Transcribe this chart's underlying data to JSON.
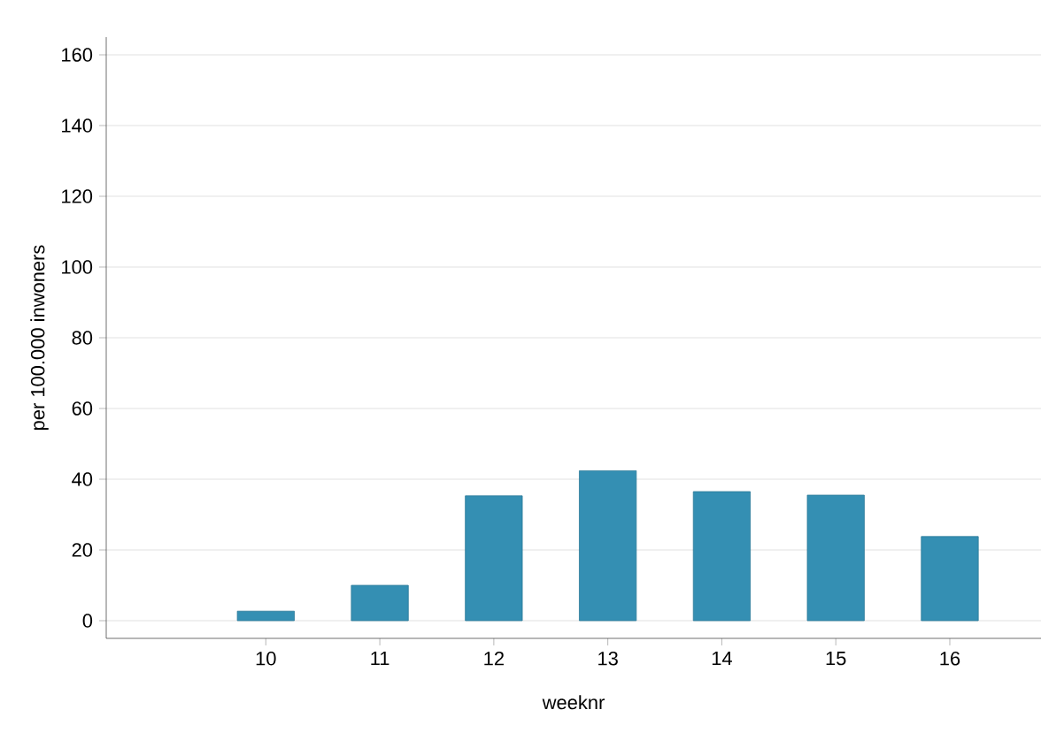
{
  "chart_data": {
    "type": "bar",
    "xlabel": "weeknr",
    "ylabel": "per 100.000 inwoners",
    "x": [
      10,
      11,
      12,
      13,
      14,
      15,
      16
    ],
    "values": [
      2.7,
      10,
      35.3,
      42.4,
      36.5,
      35.5,
      23.8
    ],
    "color": "#348fb3",
    "xlim": [
      8.6,
      16.8
    ],
    "xticks": [
      10,
      11,
      12,
      13,
      14,
      15,
      16
    ],
    "ylim": [
      -5,
      165
    ],
    "yticks": [
      0,
      20,
      40,
      60,
      80,
      100,
      120,
      140,
      160
    ],
    "grid": "y"
  }
}
